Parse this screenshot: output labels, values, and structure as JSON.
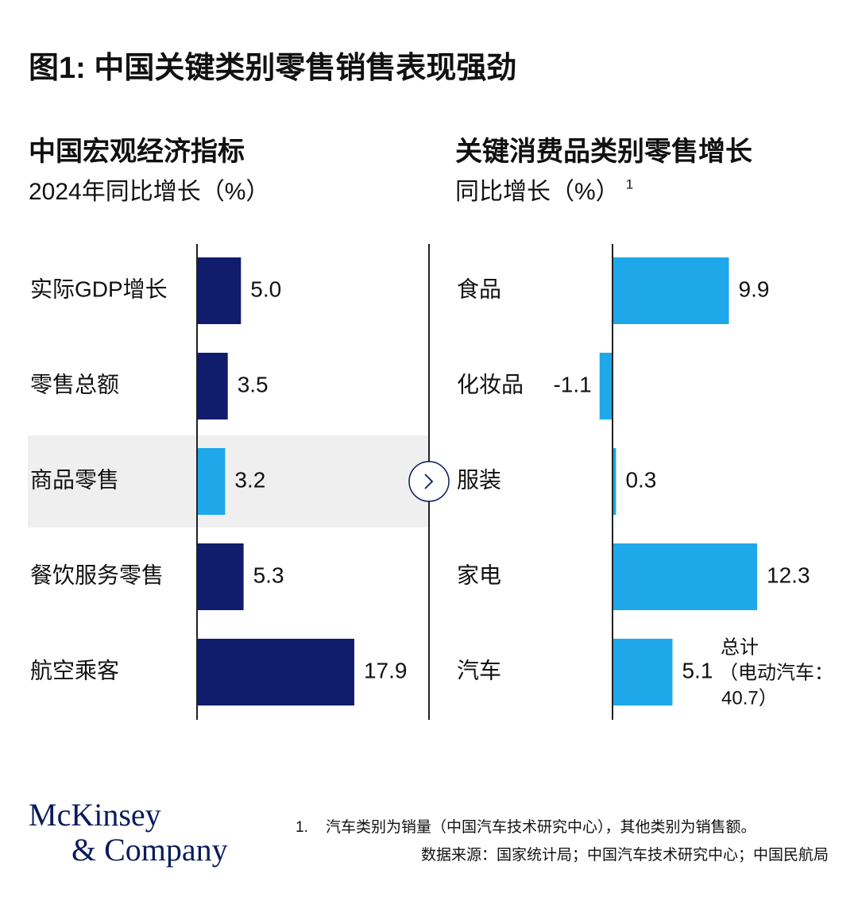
{
  "title": "图1: 中国关键类别零售销售表现强劲",
  "chart_data": [
    {
      "type": "hbar",
      "title": "中国宏观经济指标",
      "subtitle": "2024年同比增长（%）",
      "categories": [
        "实际GDP增长",
        "零售总额",
        "商品零售",
        "餐饮服务零售",
        "航空乘客"
      ],
      "values": [
        5.0,
        3.5,
        3.2,
        5.3,
        17.9
      ],
      "value_labels": [
        "5.0",
        "3.5",
        "3.2",
        "5.3",
        "17.9"
      ],
      "colors": [
        "#101c6c",
        "#101c6c",
        "#1ea8ea",
        "#101c6c",
        "#101c6c"
      ],
      "highlight": 2,
      "xlim": [
        0,
        20
      ]
    },
    {
      "type": "hbar",
      "title": "关键消费品类别零售增长",
      "subtitle": "同比增长（%）",
      "subtitle_note": "1",
      "categories": [
        "食品",
        "化妆品",
        "服装",
        "家电",
        "汽车"
      ],
      "values": [
        9.9,
        -1.1,
        0.3,
        12.3,
        5.1
      ],
      "color": "#1ea8ea",
      "annotation": {
        "category": 4,
        "lines": [
          "总计",
          "（电动汽车：",
          "40.7）"
        ]
      },
      "xlim": [
        -2,
        15
      ]
    }
  ],
  "footnote": {
    "marker": "1.",
    "text": "汽车类别为销量（中国汽车技术研究中心），其他类别为销售额。"
  },
  "source": "数据来源：国家统计局；中国汽车技术研究中心；中国民航局",
  "logo": [
    "McKinsey",
    "& Company"
  ]
}
